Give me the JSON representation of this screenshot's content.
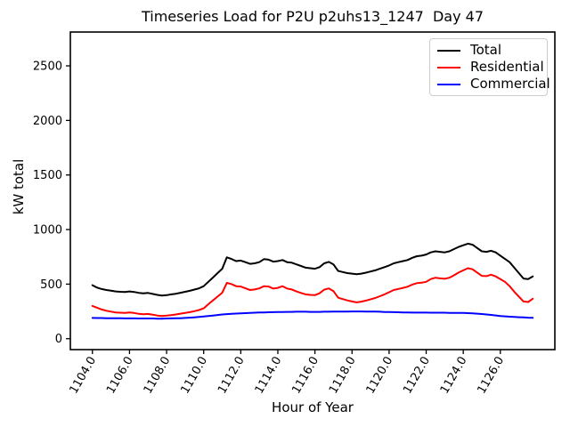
{
  "chart_data": {
    "type": "line",
    "title": "Timeseries Load for P2U p2uhs13_1247  Day 47",
    "xlabel": "Hour of Year",
    "ylabel": "kW total",
    "xlim": [
      1102.81,
      1128.94
    ],
    "ylim": [
      -100,
      2810
    ],
    "grid": false,
    "legend_position": "upper right",
    "x_ticks": [
      1104,
      1106,
      1108,
      1110,
      1112,
      1114,
      1116,
      1118,
      1120,
      1122,
      1124,
      1126
    ],
    "x_tick_labels": [
      "1104.0",
      "1106.0",
      "1108.0",
      "1110.0",
      "1112.0",
      "1114.0",
      "1116.0",
      "1118.0",
      "1120.0",
      "1122.0",
      "1124.0",
      "1126.0"
    ],
    "y_ticks": [
      0,
      500,
      1000,
      1500,
      2000,
      2500
    ],
    "y_tick_labels": [
      "0",
      "500",
      "1000",
      "1500",
      "2000",
      "2500"
    ],
    "x_start": 1104.0,
    "x_step": 0.25,
    "x_count": 96,
    "series": [
      {
        "name": "Total",
        "color": "#000000",
        "values": [
          490,
          468,
          455,
          446,
          440,
          433,
          430,
          428,
          433,
          428,
          420,
          416,
          419,
          410,
          401,
          395,
          399,
          406,
          412,
          421,
          430,
          439,
          450,
          462,
          481,
          521,
          560,
          601,
          641,
          745,
          731,
          711,
          716,
          701,
          686,
          691,
          701,
          729,
          724,
          706,
          711,
          721,
          701,
          696,
          681,
          666,
          651,
          646,
          641,
          656,
          691,
          704,
          681,
          621,
          611,
          601,
          596,
          591,
          596,
          605,
          616,
          626,
          641,
          656,
          671,
          691,
          701,
          711,
          721,
          741,
          756,
          761,
          771,
          791,
          801,
          796,
          791,
          801,
          821,
          841,
          856,
          871,
          861,
          831,
          801,
          796,
          806,
          791,
          761,
          731,
          701,
          651,
          601,
          551,
          546,
          571
        ]
      },
      {
        "name": "Residential",
        "color": "#ff0000",
        "values": [
          300,
          284,
          268,
          256,
          248,
          241,
          238,
          236,
          241,
          236,
          228,
          224,
          227,
          220,
          212,
          208,
          211,
          216,
          222,
          229,
          236,
          243,
          252,
          263,
          278,
          316,
          351,
          386,
          421,
          511,
          501,
          481,
          478,
          462,
          446,
          451,
          461,
          481,
          478,
          459,
          466,
          481,
          459,
          451,
          433,
          419,
          406,
          401,
          399,
          416,
          449,
          461,
          436,
          376,
          363,
          351,
          341,
          333,
          339,
          349,
          361,
          373,
          389,
          406,
          426,
          446,
          456,
          466,
          476,
          496,
          509,
          513,
          521,
          546,
          559,
          553,
          549,
          559,
          581,
          606,
          626,
          646,
          636,
          606,
          576,
          573,
          586,
          571,
          546,
          521,
          481,
          431,
          386,
          341,
          336,
          366
        ]
      },
      {
        "name": "Commercial",
        "color": "#0000ff",
        "values": [
          190,
          189,
          189,
          188,
          188,
          187,
          187,
          186,
          186,
          186,
          185,
          185,
          185,
          185,
          184,
          184,
          185,
          186,
          187,
          188,
          190,
          193,
          196,
          200,
          204,
          208,
          212,
          217,
          222,
          225,
          228,
          230,
          232,
          234,
          236,
          238,
          240,
          241,
          242,
          243,
          244,
          245,
          246,
          246,
          247,
          247,
          247,
          246,
          246,
          246,
          247,
          247,
          248,
          248,
          249,
          249,
          250,
          250,
          250,
          249,
          249,
          248,
          247,
          245,
          244,
          243,
          242,
          241,
          240,
          239,
          239,
          239,
          239,
          238,
          238,
          238,
          238,
          237,
          237,
          236,
          236,
          234,
          232,
          229,
          226,
          222,
          218,
          213,
          208,
          205,
          202,
          199,
          197,
          195,
          193,
          192
        ]
      }
    ]
  }
}
